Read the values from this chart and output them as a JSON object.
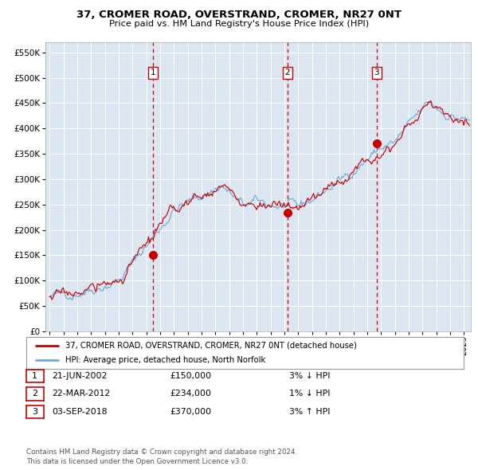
{
  "title": "37, CROMER ROAD, OVERSTRAND, CROMER, NR27 0NT",
  "subtitle": "Price paid vs. HM Land Registry's House Price Index (HPI)",
  "legend_line1": "37, CROMER ROAD, OVERSTRAND, CROMER, NR27 0NT (detached house)",
  "legend_line2": "HPI: Average price, detached house, North Norfolk",
  "footer1": "Contains HM Land Registry data © Crown copyright and database right 2024.",
  "footer2": "This data is licensed under the Open Government Licence v3.0.",
  "sale_points": [
    {
      "label": "1",
      "date_num": 2002.47,
      "price": 150000,
      "info": "21-JUN-2002",
      "amount": "£150,000",
      "pct": "3% ↓ HPI"
    },
    {
      "label": "2",
      "date_num": 2012.22,
      "price": 234000,
      "info": "22-MAR-2012",
      "amount": "£234,000",
      "pct": "1% ↓ HPI"
    },
    {
      "label": "3",
      "date_num": 2018.67,
      "price": 370000,
      "info": "03-SEP-2018",
      "amount": "£370,000",
      "pct": "3% ↑ HPI"
    }
  ],
  "hpi_color": "#6fa8dc",
  "price_color": "#cc0000",
  "bg_color": "#dce6f1",
  "grid_color": "#ffffff",
  "dashed_color": "#cc0000",
  "point_color": "#cc0000",
  "ylim": [
    0,
    570000
  ],
  "xlim_start": 1994.7,
  "xlim_end": 2025.5,
  "yticks": [
    0,
    50000,
    100000,
    150000,
    200000,
    250000,
    300000,
    350000,
    400000,
    450000,
    500000,
    550000
  ]
}
